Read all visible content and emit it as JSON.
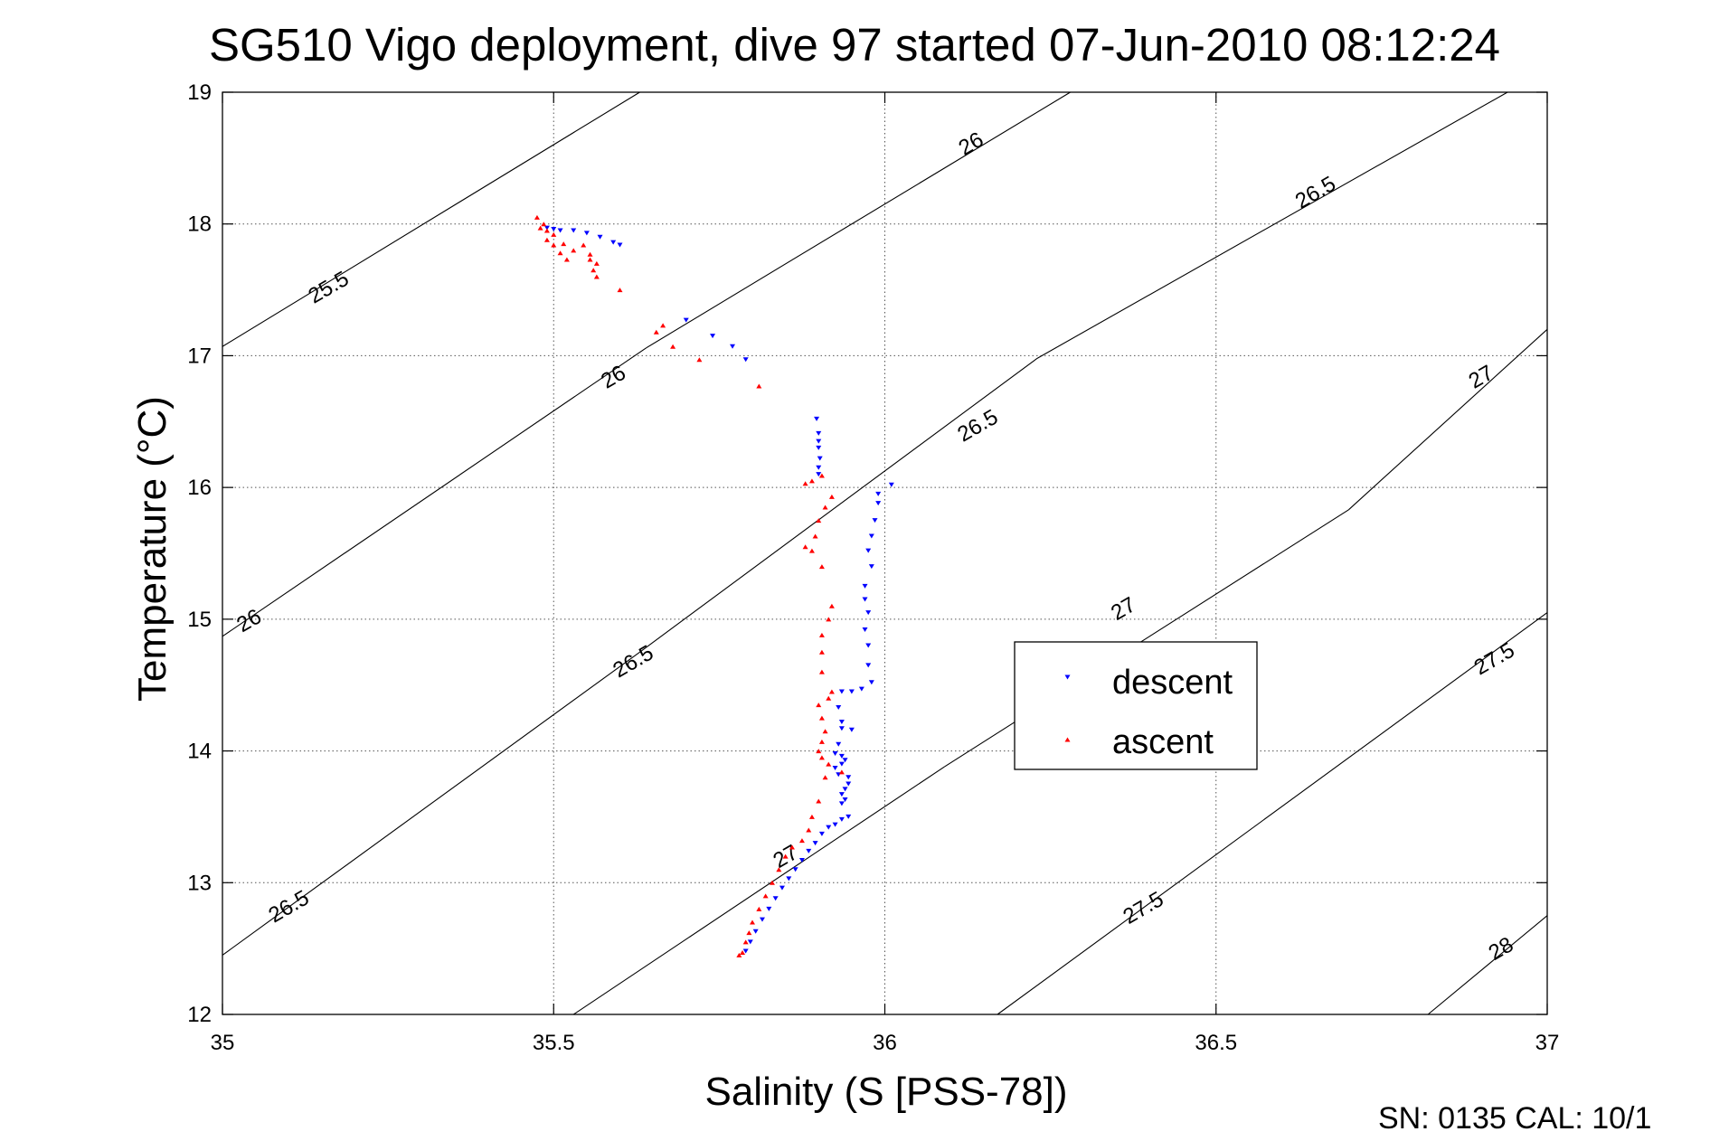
{
  "chart_data": {
    "type": "scatter",
    "title": "SG510 Vigo deployment, dive 97 started 07-Jun-2010 08:12:24",
    "xlabel": "Salinity (S [PSS-78])",
    "ylabel": "Temperature (°C)",
    "footer": "SN: 0135  CAL: 10/1",
    "xlim": [
      35,
      37
    ],
    "ylim": [
      12,
      19
    ],
    "x_ticks": [
      {
        "value": 35,
        "label": "35"
      },
      {
        "value": 35.5,
        "label": "35.5"
      },
      {
        "value": 36,
        "label": "36"
      },
      {
        "value": 36.5,
        "label": "36.5"
      },
      {
        "value": 37,
        "label": "37"
      }
    ],
    "y_ticks": [
      {
        "value": 12,
        "label": "12"
      },
      {
        "value": 13,
        "label": "13"
      },
      {
        "value": 14,
        "label": "14"
      },
      {
        "value": 15,
        "label": "15"
      },
      {
        "value": 16,
        "label": "16"
      },
      {
        "value": 17,
        "label": "17"
      },
      {
        "value": 18,
        "label": "18"
      },
      {
        "value": 19,
        "label": "19"
      }
    ],
    "grid": true,
    "grid_style": "dotted",
    "legend_placement": "center-right",
    "series": [
      {
        "name": "descent",
        "color": "#0000ff",
        "marker": "triangle-down",
        "points": [
          [
            35.49,
            17.97
          ],
          [
            35.5,
            17.96
          ],
          [
            35.51,
            17.95
          ],
          [
            35.53,
            17.95
          ],
          [
            35.55,
            17.93
          ],
          [
            35.57,
            17.9
          ],
          [
            35.59,
            17.86
          ],
          [
            35.6,
            17.84
          ],
          [
            35.7,
            17.27
          ],
          [
            35.74,
            17.15
          ],
          [
            35.77,
            17.07
          ],
          [
            35.79,
            16.97
          ],
          [
            35.897,
            16.52
          ],
          [
            35.9,
            16.41
          ],
          [
            35.9,
            16.35
          ],
          [
            35.9,
            16.3
          ],
          [
            35.902,
            16.22
          ],
          [
            35.9,
            16.15
          ],
          [
            35.9,
            16.1
          ],
          [
            36.01,
            16.02
          ],
          [
            35.99,
            15.95
          ],
          [
            35.99,
            15.88
          ],
          [
            35.985,
            15.75
          ],
          [
            35.98,
            15.63
          ],
          [
            35.975,
            15.52
          ],
          [
            35.98,
            15.4
          ],
          [
            35.97,
            15.25
          ],
          [
            35.97,
            15.15
          ],
          [
            35.975,
            15.05
          ],
          [
            35.97,
            14.92
          ],
          [
            35.975,
            14.8
          ],
          [
            35.975,
            14.65
          ],
          [
            35.98,
            14.52
          ],
          [
            35.965,
            14.47
          ],
          [
            35.95,
            14.45
          ],
          [
            35.935,
            14.45
          ],
          [
            35.93,
            14.33
          ],
          [
            35.935,
            14.22
          ],
          [
            35.935,
            14.17
          ],
          [
            35.95,
            14.16
          ],
          [
            35.93,
            14.05
          ],
          [
            35.925,
            13.98
          ],
          [
            35.935,
            13.96
          ],
          [
            35.94,
            13.93
          ],
          [
            35.935,
            13.9
          ],
          [
            35.925,
            13.87
          ],
          [
            35.93,
            13.82
          ],
          [
            35.945,
            13.8
          ],
          [
            35.945,
            13.75
          ],
          [
            35.94,
            13.71
          ],
          [
            35.935,
            13.67
          ],
          [
            35.94,
            13.63
          ],
          [
            35.935,
            13.6
          ],
          [
            35.945,
            13.5
          ],
          [
            35.935,
            13.48
          ],
          [
            35.925,
            13.44
          ],
          [
            35.915,
            13.42
          ],
          [
            35.905,
            13.37
          ],
          [
            35.895,
            13.3
          ],
          [
            35.885,
            13.24
          ],
          [
            35.875,
            13.17
          ],
          [
            35.865,
            13.1
          ],
          [
            35.855,
            13.03
          ],
          [
            35.845,
            12.96
          ],
          [
            35.835,
            12.88
          ],
          [
            35.825,
            12.8
          ],
          [
            35.815,
            12.72
          ],
          [
            35.805,
            12.63
          ],
          [
            35.797,
            12.55
          ],
          [
            35.79,
            12.48
          ]
        ]
      },
      {
        "name": "ascent",
        "color": "#ff0000",
        "marker": "triangle-up",
        "points": [
          [
            35.475,
            18.05
          ],
          [
            35.485,
            18.0
          ],
          [
            35.48,
            17.97
          ],
          [
            35.49,
            17.95
          ],
          [
            35.5,
            17.92
          ],
          [
            35.49,
            17.88
          ],
          [
            35.5,
            17.84
          ],
          [
            35.515,
            17.85
          ],
          [
            35.51,
            17.78
          ],
          [
            35.53,
            17.8
          ],
          [
            35.545,
            17.84
          ],
          [
            35.555,
            17.77
          ],
          [
            35.52,
            17.73
          ],
          [
            35.555,
            17.73
          ],
          [
            35.565,
            17.7
          ],
          [
            35.56,
            17.65
          ],
          [
            35.565,
            17.6
          ],
          [
            35.6,
            17.5
          ],
          [
            35.665,
            17.23
          ],
          [
            35.655,
            17.18
          ],
          [
            35.68,
            17.07
          ],
          [
            35.72,
            16.97
          ],
          [
            35.81,
            16.77
          ],
          [
            35.905,
            16.09
          ],
          [
            35.89,
            16.05
          ],
          [
            35.88,
            16.03
          ],
          [
            35.92,
            15.93
          ],
          [
            35.91,
            15.85
          ],
          [
            35.9,
            15.75
          ],
          [
            35.895,
            15.63
          ],
          [
            35.89,
            15.52
          ],
          [
            35.88,
            15.55
          ],
          [
            35.905,
            15.4
          ],
          [
            35.92,
            15.1
          ],
          [
            35.915,
            15.0
          ],
          [
            35.905,
            14.88
          ],
          [
            35.905,
            14.75
          ],
          [
            35.905,
            14.6
          ],
          [
            35.92,
            14.45
          ],
          [
            35.915,
            14.4
          ],
          [
            35.9,
            14.35
          ],
          [
            35.905,
            14.25
          ],
          [
            35.91,
            14.15
          ],
          [
            35.905,
            14.07
          ],
          [
            35.9,
            14.0
          ],
          [
            35.905,
            13.95
          ],
          [
            35.915,
            13.9
          ],
          [
            35.935,
            13.84
          ],
          [
            35.91,
            13.8
          ],
          [
            35.9,
            13.62
          ],
          [
            35.89,
            13.5
          ],
          [
            35.885,
            13.4
          ],
          [
            35.875,
            13.32
          ],
          [
            35.86,
            13.27
          ],
          [
            35.85,
            13.2
          ],
          [
            35.84,
            13.1
          ],
          [
            35.83,
            13.0
          ],
          [
            35.82,
            12.9
          ],
          [
            35.81,
            12.8
          ],
          [
            35.8,
            12.7
          ],
          [
            35.795,
            12.62
          ],
          [
            35.79,
            12.55
          ],
          [
            35.785,
            12.47
          ],
          [
            35.78,
            12.45
          ]
        ]
      }
    ],
    "density_contours": [
      {
        "label": "25.5",
        "segments": [
          [
            35.0,
            17.07,
            35.63,
            19.0
          ]
        ],
        "labels_at": [
          [
            35.16,
            17.52
          ]
        ]
      },
      {
        "label": "26",
        "segments": [
          [
            35.0,
            14.87,
            35.64,
            17.06
          ],
          [
            35.64,
            17.06,
            36.28,
            19.0
          ]
        ],
        "labels_at": [
          [
            35.04,
            14.99
          ],
          [
            35.59,
            16.84
          ],
          [
            36.13,
            18.61
          ]
        ]
      },
      {
        "label": "26.5",
        "segments": [
          [
            35.0,
            12.45,
            35.63,
            14.75
          ],
          [
            35.63,
            14.75,
            36.23,
            16.98
          ],
          [
            36.23,
            16.98,
            36.94,
            19.0
          ]
        ],
        "labels_at": [
          [
            35.1,
            12.82
          ],
          [
            35.62,
            14.68
          ],
          [
            36.14,
            16.47
          ],
          [
            36.65,
            18.24
          ]
        ]
      },
      {
        "label": "27",
        "segments": [
          [
            35.53,
            12.0,
            36.09,
            13.88
          ],
          [
            36.09,
            13.88,
            36.7,
            15.83
          ],
          [
            36.7,
            15.83,
            37.0,
            17.2
          ]
        ],
        "labels_at": [
          [
            35.85,
            13.2
          ],
          [
            36.36,
            15.08
          ],
          [
            36.9,
            16.84
          ]
        ]
      },
      {
        "label": "27.5",
        "segments": [
          [
            36.17,
            12.0,
            37.0,
            15.05
          ]
        ],
        "labels_at": [
          [
            36.39,
            12.81
          ],
          [
            36.92,
            14.7
          ]
        ]
      },
      {
        "label": "28",
        "segments": [
          [
            36.82,
            12.0,
            37.0,
            12.75
          ]
        ],
        "labels_at": [
          [
            36.93,
            12.5
          ]
        ]
      }
    ]
  }
}
